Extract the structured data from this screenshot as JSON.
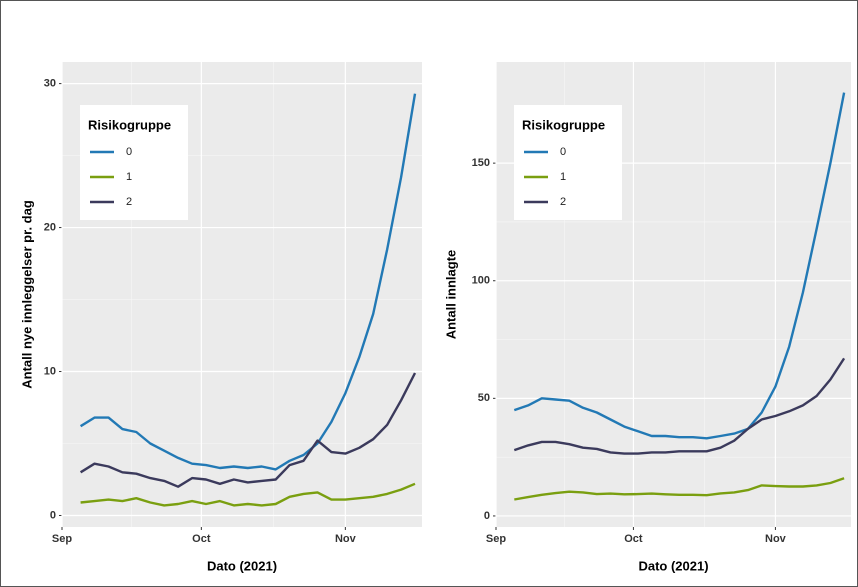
{
  "chart_data": [
    {
      "type": "line",
      "x_label": "Dato (2021)",
      "y_label": "Antall nye innleggelser pr. dag",
      "legend_title": "Risikogruppe",
      "legend": "top-left",
      "grid": true,
      "x": [
        4,
        7,
        10,
        13,
        16,
        19,
        22,
        25,
        28,
        31,
        34,
        37,
        40,
        43,
        46,
        49,
        52,
        55,
        58,
        61,
        64,
        67,
        70,
        73,
        76
      ],
      "xlim": [
        0,
        77.5
      ],
      "xticks": [
        {
          "value": 0,
          "label": "Sep"
        },
        {
          "value": 30,
          "label": "Oct"
        },
        {
          "value": 61,
          "label": "Nov"
        }
      ],
      "ylim": [
        -0.8,
        31.5
      ],
      "yticks": [
        0,
        10,
        20,
        30
      ],
      "series": [
        {
          "name": "0",
          "color": "#2279b5",
          "values": [
            6.2,
            6.8,
            6.8,
            6.0,
            5.8,
            5.0,
            4.5,
            4.0,
            3.6,
            3.5,
            3.3,
            3.4,
            3.3,
            3.4,
            3.2,
            3.8,
            4.2,
            5.0,
            6.5,
            8.5,
            11,
            14,
            18.5,
            23.5,
            29.3
          ]
        },
        {
          "name": "1",
          "color": "#7a9f10",
          "values": [
            0.9,
            1.0,
            1.1,
            1.0,
            1.2,
            0.9,
            0.7,
            0.8,
            1.0,
            0.8,
            1.0,
            0.7,
            0.8,
            0.7,
            0.8,
            1.3,
            1.5,
            1.6,
            1.1,
            1.1,
            1.2,
            1.3,
            1.5,
            1.8,
            2.2
          ]
        },
        {
          "name": "2",
          "color": "#3b3a5c",
          "values": [
            3.0,
            3.6,
            3.4,
            3.0,
            2.9,
            2.6,
            2.4,
            2.0,
            2.6,
            2.5,
            2.2,
            2.5,
            2.3,
            2.4,
            2.5,
            3.5,
            3.8,
            5.2,
            4.4,
            4.3,
            4.7,
            5.3,
            6.3,
            8.0,
            9.9
          ]
        }
      ]
    },
    {
      "type": "line",
      "x_label": "Dato (2021)",
      "y_label": "Antall innlagte",
      "legend_title": "Risikogruppe",
      "legend": "top-left",
      "grid": true,
      "x": [
        4,
        7,
        10,
        13,
        16,
        19,
        22,
        25,
        28,
        31,
        34,
        37,
        40,
        43,
        46,
        49,
        52,
        55,
        58,
        61,
        64,
        67,
        70,
        73,
        76
      ],
      "xlim": [
        0,
        77.5
      ],
      "xticks": [
        {
          "value": 0,
          "label": "Sep"
        },
        {
          "value": 30,
          "label": "Oct"
        },
        {
          "value": 61,
          "label": "Nov"
        }
      ],
      "ylim": [
        -4.7,
        193
      ],
      "yticks": [
        0,
        50,
        100,
        150
      ],
      "series": [
        {
          "name": "0",
          "color": "#2279b5",
          "values": [
            45,
            47,
            50,
            49.5,
            49,
            46,
            44,
            41,
            38,
            36,
            34,
            34,
            33.5,
            33.5,
            33,
            34,
            35,
            37,
            44,
            55,
            72,
            95,
            122,
            150,
            180
          ]
        },
        {
          "name": "1",
          "color": "#7a9f10",
          "values": [
            7,
            8,
            9,
            9.7,
            10.3,
            10,
            9.3,
            9.5,
            9.2,
            9.3,
            9.5,
            9.2,
            9,
            9,
            8.8,
            9.6,
            10,
            11,
            13,
            12.7,
            12.5,
            12.5,
            13,
            14,
            16
          ]
        },
        {
          "name": "2",
          "color": "#3b3a5c",
          "values": [
            28,
            30,
            31.5,
            31.5,
            30.5,
            29,
            28.5,
            27,
            26.5,
            26.5,
            27,
            27,
            27.5,
            27.5,
            27.5,
            29,
            32,
            37,
            41,
            42.5,
            44.5,
            47,
            51,
            58,
            67
          ]
        }
      ]
    }
  ]
}
